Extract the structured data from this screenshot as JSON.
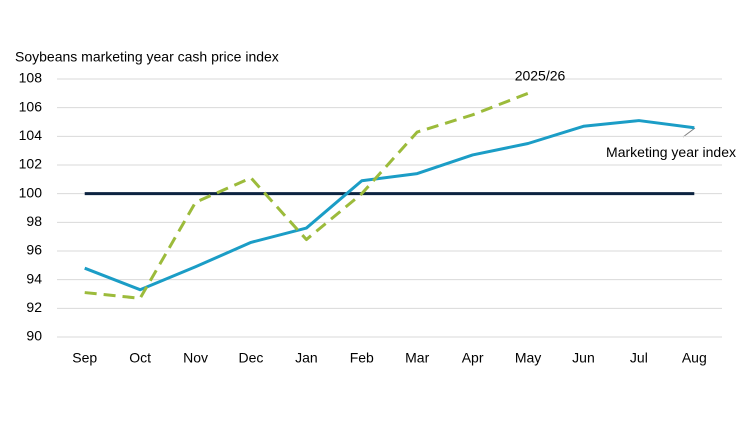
{
  "chart_data": {
    "type": "line",
    "title": "Soybeans marketing year cash price index",
    "categories": [
      "Sep",
      "Oct",
      "Nov",
      "Dec",
      "Jan",
      "Feb",
      "Mar",
      "Apr",
      "May",
      "Jun",
      "Jul",
      "Aug"
    ],
    "series": [
      {
        "name": "Marketing year index",
        "color": "#1b9dc6",
        "dashed": false,
        "values": [
          94.8,
          93.3,
          94.9,
          96.6,
          97.6,
          100.9,
          101.4,
          102.7,
          103.5,
          104.7,
          105.1,
          104.6
        ]
      },
      {
        "name": "2025/26",
        "color": "#9cbb3b",
        "dashed": true,
        "values": [
          93.1,
          92.7,
          99.4,
          101.1,
          96.8,
          100.0,
          104.3,
          105.5,
          107.0,
          null,
          null,
          null
        ]
      }
    ],
    "reference_line": {
      "value": 100,
      "color": "#0c2340"
    },
    "ylim": [
      90,
      108
    ],
    "yticks": [
      90,
      92,
      94,
      96,
      98,
      100,
      102,
      104,
      106,
      108
    ],
    "grid": true
  }
}
